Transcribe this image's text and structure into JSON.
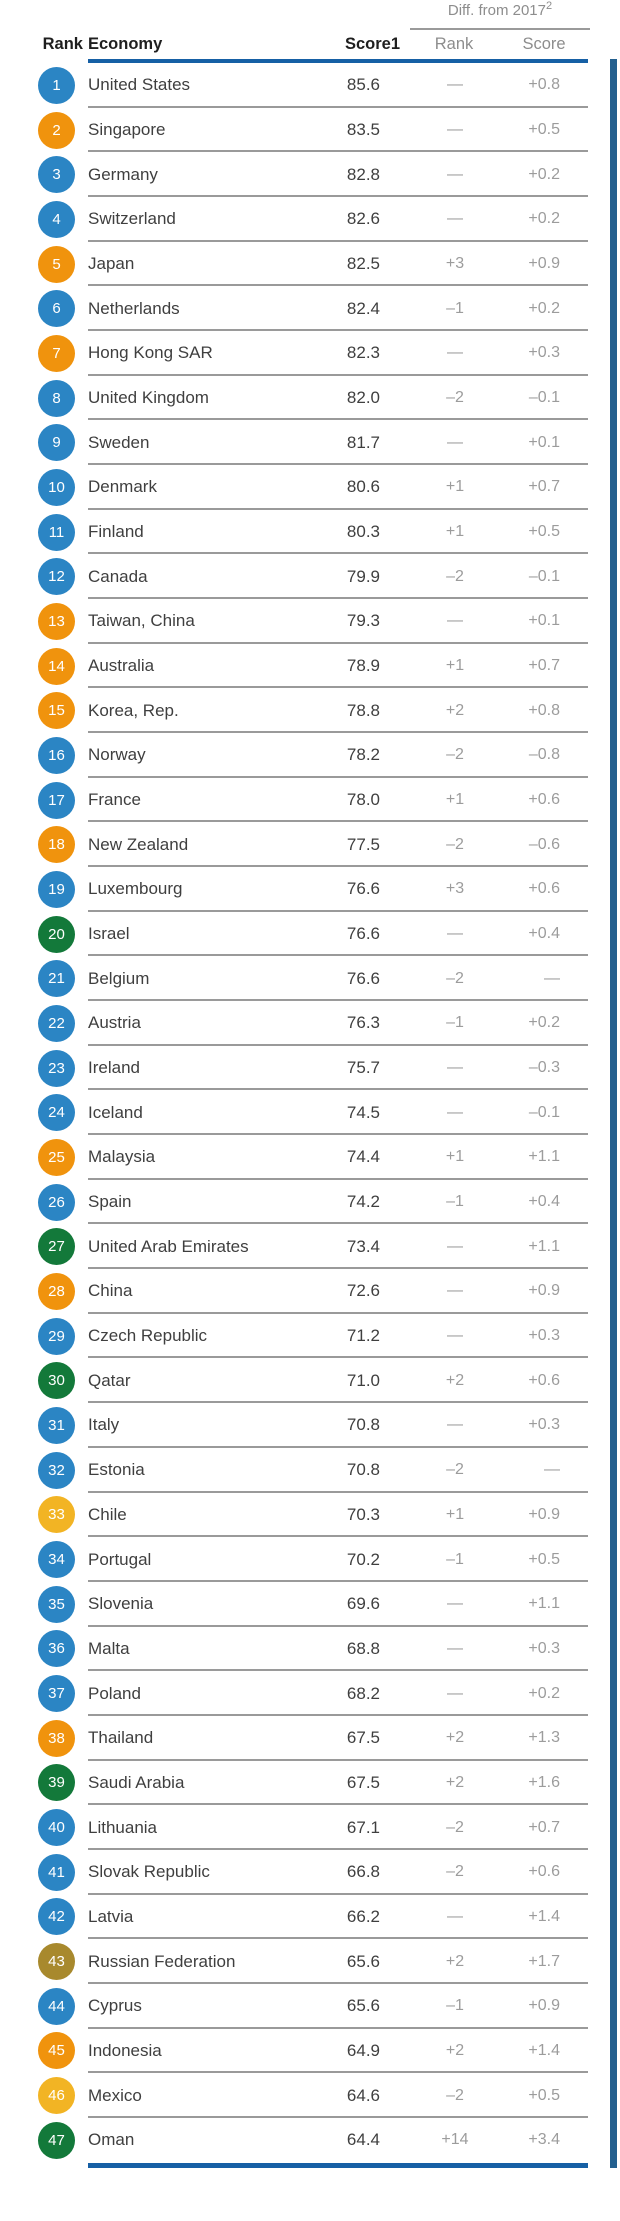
{
  "table": {
    "diff_group": {
      "label": "Diff. from 2017",
      "footnote": "2"
    },
    "columns": {
      "rank": "Rank",
      "economy": "Economy",
      "score": "Score",
      "score_footnote": "1",
      "diff_rank": "Rank",
      "diff_score": "Score"
    },
    "palette": {
      "blue": "#2b85c4",
      "orange": "#f0930d",
      "yellow": "#f2b424",
      "green": "#13793a",
      "olive": "#a8892d"
    },
    "accent_line_color": "#1660a5",
    "separator_color": "#9a9a9a",
    "side_bar_color": "#23608f",
    "rows": [
      {
        "rank": "1",
        "economy": "United States",
        "score": "85.6",
        "diff_rank": "—",
        "diff_score": "+0.8",
        "color": "blue"
      },
      {
        "rank": "2",
        "economy": "Singapore",
        "score": "83.5",
        "diff_rank": "—",
        "diff_score": "+0.5",
        "color": "orange"
      },
      {
        "rank": "3",
        "economy": "Germany",
        "score": "82.8",
        "diff_rank": "—",
        "diff_score": "+0.2",
        "color": "blue"
      },
      {
        "rank": "4",
        "economy": "Switzerland",
        "score": "82.6",
        "diff_rank": "—",
        "diff_score": "+0.2",
        "color": "blue"
      },
      {
        "rank": "5",
        "economy": "Japan",
        "score": "82.5",
        "diff_rank": "+3",
        "diff_score": "+0.9",
        "color": "orange"
      },
      {
        "rank": "6",
        "economy": "Netherlands",
        "score": "82.4",
        "diff_rank": "–1",
        "diff_score": "+0.2",
        "color": "blue"
      },
      {
        "rank": "7",
        "economy": "Hong Kong SAR",
        "score": "82.3",
        "diff_rank": "—",
        "diff_score": "+0.3",
        "color": "orange"
      },
      {
        "rank": "8",
        "economy": "United Kingdom",
        "score": "82.0",
        "diff_rank": "–2",
        "diff_score": "–0.1",
        "color": "blue"
      },
      {
        "rank": "9",
        "economy": "Sweden",
        "score": "81.7",
        "diff_rank": "—",
        "diff_score": "+0.1",
        "color": "blue"
      },
      {
        "rank": "10",
        "economy": "Denmark",
        "score": "80.6",
        "diff_rank": "+1",
        "diff_score": "+0.7",
        "color": "blue"
      },
      {
        "rank": "11",
        "economy": "Finland",
        "score": "80.3",
        "diff_rank": "+1",
        "diff_score": "+0.5",
        "color": "blue"
      },
      {
        "rank": "12",
        "economy": "Canada",
        "score": "79.9",
        "diff_rank": "–2",
        "diff_score": "–0.1",
        "color": "blue"
      },
      {
        "rank": "13",
        "economy": "Taiwan, China",
        "score": "79.3",
        "diff_rank": "—",
        "diff_score": "+0.1",
        "color": "orange"
      },
      {
        "rank": "14",
        "economy": "Australia",
        "score": "78.9",
        "diff_rank": "+1",
        "diff_score": "+0.7",
        "color": "orange"
      },
      {
        "rank": "15",
        "economy": "Korea, Rep.",
        "score": "78.8",
        "diff_rank": "+2",
        "diff_score": "+0.8",
        "color": "orange"
      },
      {
        "rank": "16",
        "economy": "Norway",
        "score": "78.2",
        "diff_rank": "–2",
        "diff_score": "–0.8",
        "color": "blue"
      },
      {
        "rank": "17",
        "economy": "France",
        "score": "78.0",
        "diff_rank": "+1",
        "diff_score": "+0.6",
        "color": "blue"
      },
      {
        "rank": "18",
        "economy": "New Zealand",
        "score": "77.5",
        "diff_rank": "–2",
        "diff_score": "–0.6",
        "color": "orange"
      },
      {
        "rank": "19",
        "economy": "Luxembourg",
        "score": "76.6",
        "diff_rank": "+3",
        "diff_score": "+0.6",
        "color": "blue"
      },
      {
        "rank": "20",
        "economy": "Israel",
        "score": "76.6",
        "diff_rank": "—",
        "diff_score": "+0.4",
        "color": "green"
      },
      {
        "rank": "21",
        "economy": "Belgium",
        "score": "76.6",
        "diff_rank": "–2",
        "diff_score": "—",
        "color": "blue"
      },
      {
        "rank": "22",
        "economy": "Austria",
        "score": "76.3",
        "diff_rank": "–1",
        "diff_score": "+0.2",
        "color": "blue"
      },
      {
        "rank": "23",
        "economy": "Ireland",
        "score": "75.7",
        "diff_rank": "—",
        "diff_score": "–0.3",
        "color": "blue"
      },
      {
        "rank": "24",
        "economy": "Iceland",
        "score": "74.5",
        "diff_rank": "—",
        "diff_score": "–0.1",
        "color": "blue"
      },
      {
        "rank": "25",
        "economy": "Malaysia",
        "score": "74.4",
        "diff_rank": "+1",
        "diff_score": "+1.1",
        "color": "orange"
      },
      {
        "rank": "26",
        "economy": "Spain",
        "score": "74.2",
        "diff_rank": "–1",
        "diff_score": "+0.4",
        "color": "blue"
      },
      {
        "rank": "27",
        "economy": "United Arab Emirates",
        "score": "73.4",
        "diff_rank": "—",
        "diff_score": "+1.1",
        "color": "green"
      },
      {
        "rank": "28",
        "economy": "China",
        "score": "72.6",
        "diff_rank": "—",
        "diff_score": "+0.9",
        "color": "orange"
      },
      {
        "rank": "29",
        "economy": "Czech Republic",
        "score": "71.2",
        "diff_rank": "—",
        "diff_score": "+0.3",
        "color": "blue"
      },
      {
        "rank": "30",
        "economy": "Qatar",
        "score": "71.0",
        "diff_rank": "+2",
        "diff_score": "+0.6",
        "color": "green"
      },
      {
        "rank": "31",
        "economy": "Italy",
        "score": "70.8",
        "diff_rank": "—",
        "diff_score": "+0.3",
        "color": "blue"
      },
      {
        "rank": "32",
        "economy": "Estonia",
        "score": "70.8",
        "diff_rank": "–2",
        "diff_score": "—",
        "color": "blue"
      },
      {
        "rank": "33",
        "economy": "Chile",
        "score": "70.3",
        "diff_rank": "+1",
        "diff_score": "+0.9",
        "color": "yellow"
      },
      {
        "rank": "34",
        "economy": "Portugal",
        "score": "70.2",
        "diff_rank": "–1",
        "diff_score": "+0.5",
        "color": "blue"
      },
      {
        "rank": "35",
        "economy": "Slovenia",
        "score": "69.6",
        "diff_rank": "—",
        "diff_score": "+1.1",
        "color": "blue"
      },
      {
        "rank": "36",
        "economy": "Malta",
        "score": "68.8",
        "diff_rank": "—",
        "diff_score": "+0.3",
        "color": "blue"
      },
      {
        "rank": "37",
        "economy": "Poland",
        "score": "68.2",
        "diff_rank": "—",
        "diff_score": "+0.2",
        "color": "blue"
      },
      {
        "rank": "38",
        "economy": "Thailand",
        "score": "67.5",
        "diff_rank": "+2",
        "diff_score": "+1.3",
        "color": "orange"
      },
      {
        "rank": "39",
        "economy": "Saudi Arabia",
        "score": "67.5",
        "diff_rank": "+2",
        "diff_score": "+1.6",
        "color": "green"
      },
      {
        "rank": "40",
        "economy": "Lithuania",
        "score": "67.1",
        "diff_rank": "–2",
        "diff_score": "+0.7",
        "color": "blue"
      },
      {
        "rank": "41",
        "economy": "Slovak Republic",
        "score": "66.8",
        "diff_rank": "–2",
        "diff_score": "+0.6",
        "color": "blue"
      },
      {
        "rank": "42",
        "economy": "Latvia",
        "score": "66.2",
        "diff_rank": "—",
        "diff_score": "+1.4",
        "color": "blue"
      },
      {
        "rank": "43",
        "economy": "Russian Federation",
        "score": "65.6",
        "diff_rank": "+2",
        "diff_score": "+1.7",
        "color": "olive"
      },
      {
        "rank": "44",
        "economy": "Cyprus",
        "score": "65.6",
        "diff_rank": "–1",
        "diff_score": "+0.9",
        "color": "blue"
      },
      {
        "rank": "45",
        "economy": "Indonesia",
        "score": "64.9",
        "diff_rank": "+2",
        "diff_score": "+1.4",
        "color": "orange"
      },
      {
        "rank": "46",
        "economy": "Mexico",
        "score": "64.6",
        "diff_rank": "–2",
        "diff_score": "+0.5",
        "color": "yellow"
      },
      {
        "rank": "47",
        "economy": "Oman",
        "score": "64.4",
        "diff_rank": "+14",
        "diff_score": "+3.4",
        "color": "green"
      }
    ]
  }
}
